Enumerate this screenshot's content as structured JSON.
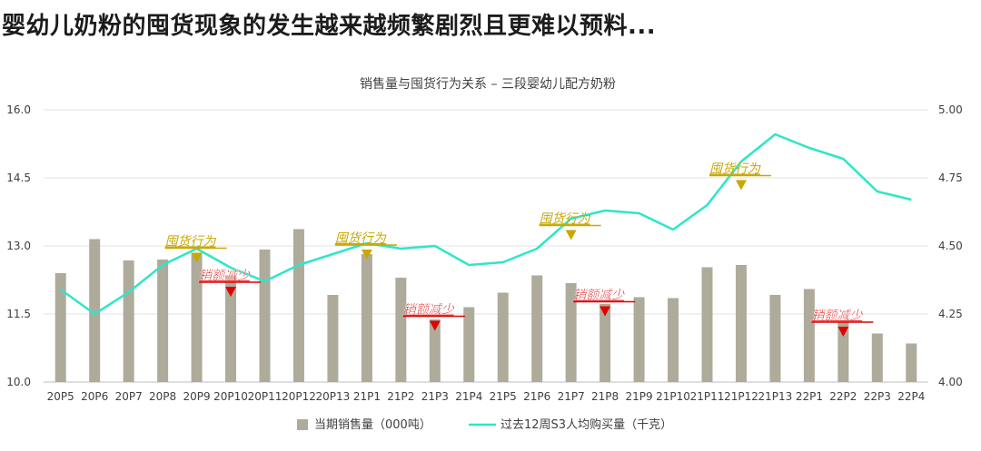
{
  "headline": "婴幼儿奶粉的囤货现象的发生越来越频繁剧烈且更难以预料...",
  "chart_data": {
    "type": "bar",
    "title": "销售量与囤货行为关系 – 三段婴幼儿配方奶粉",
    "categories": [
      "20P5",
      "20P6",
      "20P7",
      "20P8",
      "20P9",
      "20P10",
      "20P11",
      "20P12",
      "20P13",
      "21P1",
      "21P2",
      "21P3",
      "21P4",
      "21P5",
      "21P6",
      "21P7",
      "21P8",
      "21P9",
      "21P10",
      "21P11",
      "21P12",
      "21P13",
      "22P1",
      "22P2",
      "22P3",
      "22P4"
    ],
    "series": [
      {
        "name": "当期销售量（000吨）",
        "type": "bar",
        "axis": "left",
        "color": "#aeab9b",
        "values": [
          12.4,
          13.15,
          12.68,
          12.7,
          12.85,
          12.35,
          12.92,
          13.37,
          11.92,
          12.82,
          12.3,
          11.38,
          11.65,
          11.97,
          12.35,
          12.18,
          11.72,
          11.87,
          11.85,
          12.53,
          12.58,
          11.92,
          12.05,
          11.35,
          11.07,
          10.85
        ]
      },
      {
        "name": "过去12周S3人均购买量（千克）",
        "type": "line",
        "axis": "right",
        "color": "#2ee6c8",
        "values": [
          4.34,
          4.25,
          4.33,
          4.43,
          4.49,
          4.42,
          4.37,
          4.43,
          4.47,
          4.51,
          4.49,
          4.5,
          4.43,
          4.44,
          4.49,
          4.6,
          4.63,
          4.62,
          4.56,
          4.65,
          4.81,
          4.91,
          4.86,
          4.82,
          4.7,
          4.67
        ]
      }
    ],
    "y_left": {
      "min": 10.0,
      "max": 16.0,
      "ticks": [
        "10.0",
        "11.5",
        "13.0",
        "14.5",
        "16.0"
      ]
    },
    "y_right": {
      "min": 4.0,
      "max": 5.0,
      "ticks": [
        "4.00",
        "4.25",
        "4.50",
        "4.75",
        "5.00"
      ]
    },
    "grid": true,
    "legend": "bottom",
    "annotations": [
      {
        "text": "囤货行为",
        "category": "20P9",
        "kind": "hoarding",
        "marker": "down-triangle",
        "marker_value": 12.75,
        "color": "#c8a800"
      },
      {
        "text": "销额减少",
        "category": "20P10",
        "kind": "decline",
        "marker": "down-triangle",
        "marker_value": 12.0,
        "color": "#e00000"
      },
      {
        "text": "囤货行为",
        "category": "21P1",
        "kind": "hoarding",
        "marker": "down-triangle",
        "marker_value": 12.82,
        "color": "#c8a800"
      },
      {
        "text": "销额减少",
        "category": "21P3",
        "kind": "decline",
        "marker": "down-triangle",
        "marker_value": 11.25,
        "color": "#e00000"
      },
      {
        "text": "囤货行为",
        "category": "21P7",
        "kind": "hoarding",
        "marker": "down-triangle",
        "marker_value": 13.25,
        "color": "#c8a800"
      },
      {
        "text": "销额减少",
        "category": "21P8",
        "kind": "decline",
        "marker": "down-triangle",
        "marker_value": 11.57,
        "color": "#e00000"
      },
      {
        "text": "囤货行为",
        "category": "21P12",
        "kind": "hoarding",
        "marker": "down-triangle",
        "marker_value": 14.35,
        "color": "#c8a800"
      },
      {
        "text": "销额减少",
        "category": "22P2",
        "kind": "decline",
        "marker": "down-triangle",
        "marker_value": 11.12,
        "color": "#e00000"
      }
    ]
  }
}
